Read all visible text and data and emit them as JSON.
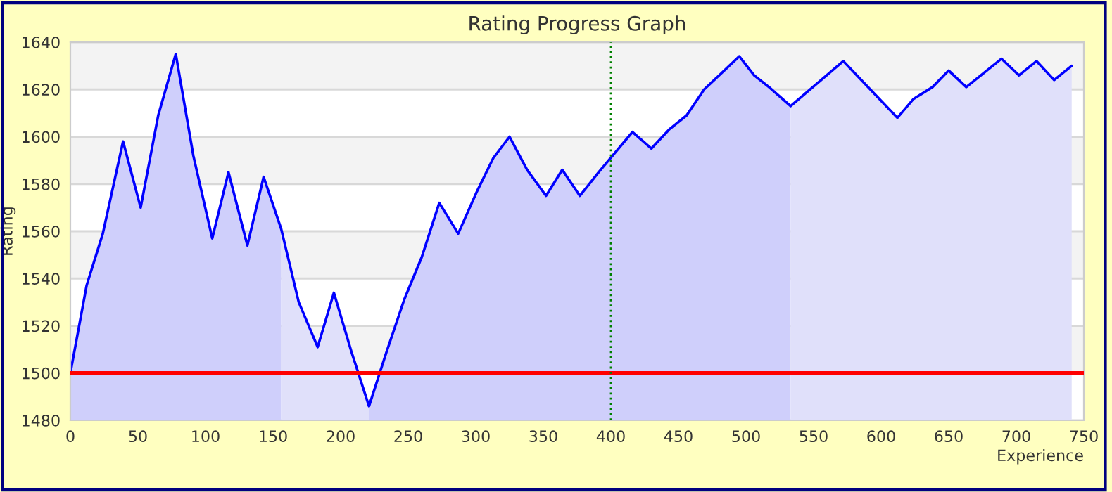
{
  "chart_data": {
    "type": "line",
    "title": "Rating Progress Graph",
    "xlabel": "Experience",
    "ylabel": "Rating",
    "xlim": [
      0,
      750
    ],
    "xticks": [
      0,
      50,
      100,
      150,
      200,
      250,
      300,
      350,
      400,
      450,
      500,
      550,
      600,
      650,
      700,
      750
    ],
    "ylim": [
      1480,
      1640
    ],
    "yticks": [
      1480,
      1500,
      1520,
      1540,
      1560,
      1580,
      1600,
      1620,
      1640
    ],
    "grid": "y",
    "marker": "none",
    "line_style": "solid",
    "x": [
      0,
      12,
      24,
      39,
      52,
      65,
      78,
      91,
      105,
      117,
      131,
      143,
      156,
      169,
      183,
      195,
      208,
      221,
      234,
      247,
      260,
      273,
      287,
      301,
      313,
      325,
      338,
      352,
      364,
      377,
      391,
      416,
      430,
      443,
      456,
      469,
      482,
      495,
      506,
      517,
      533,
      572,
      612,
      624,
      638,
      650,
      663,
      689,
      702,
      715,
      728,
      741
    ],
    "series": [
      {
        "type": "area",
        "color": "#cfcffb",
        "values": [
          1500,
          1537,
          1559,
          1598,
          1570,
          1609,
          1635,
          1592,
          1557,
          1585,
          1554,
          1583,
          1561,
          null,
          null,
          null,
          null,
          1486,
          1509,
          1531,
          1549,
          1572,
          1559,
          1577,
          1591,
          1600,
          1586,
          1575,
          1586,
          1575,
          1585,
          1602,
          1595,
          1603,
          1609,
          1620,
          1627,
          1634,
          1626,
          1621,
          1613,
          null,
          null,
          null,
          null,
          null,
          null,
          null,
          null,
          null,
          null,
          null
        ]
      },
      {
        "type": "area",
        "color": "#e0e0fa",
        "values": [
          null,
          null,
          null,
          null,
          null,
          null,
          null,
          null,
          null,
          null,
          null,
          null,
          1561,
          1530,
          1511,
          1534,
          1509,
          1486,
          null,
          null,
          null,
          null,
          null,
          null,
          null,
          null,
          null,
          null,
          null,
          null,
          null,
          null,
          null,
          null,
          null,
          null,
          null,
          null,
          null,
          null,
          1613,
          1632,
          1608,
          1616,
          1621,
          1628,
          1621,
          1633,
          1626,
          1632,
          1624,
          1630
        ]
      },
      {
        "color": "#0000ff",
        "values": [
          1500,
          1537,
          1559,
          1598,
          1570,
          1609,
          1635,
          1592,
          1557,
          1585,
          1554,
          1583,
          1561,
          1530,
          1511,
          1534,
          1509,
          1486,
          1509,
          1531,
          1549,
          1572,
          1559,
          1577,
          1591,
          1600,
          1586,
          1575,
          1586,
          1575,
          1585,
          1602,
          1595,
          1603,
          1609,
          1620,
          1627,
          1634,
          1626,
          1621,
          1613,
          1632,
          1608,
          1616,
          1621,
          1628,
          1621,
          1633,
          1626,
          1632,
          1624,
          1630
        ]
      }
    ],
    "ref_lines": [
      {
        "axis": "y",
        "value": 1500,
        "color": "#ff0000",
        "line_style": "solid"
      },
      {
        "axis": "x",
        "value": 400,
        "color": "#008000",
        "line_style": "dotted"
      }
    ]
  }
}
